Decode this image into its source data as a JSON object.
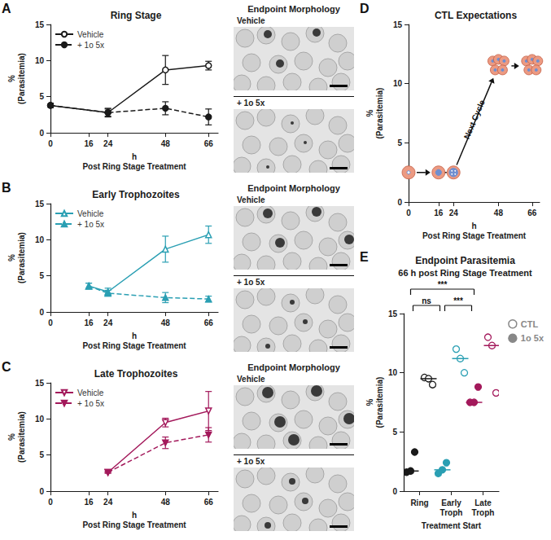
{
  "chart_data": [
    {
      "panel": "A",
      "type": "line",
      "title": "Ring Stage",
      "x_label": "h\nPost Ring Stage Treatment",
      "y_label": "%\n(Parasitemia)",
      "x": [
        0,
        24,
        48,
        66
      ],
      "xlim": [
        0,
        70
      ],
      "xticks": [
        0,
        16,
        24,
        48,
        66
      ],
      "ylim": [
        0,
        15
      ],
      "yticks": [
        0,
        5,
        10,
        15
      ],
      "legend": "upper left",
      "annotations": [
        "Endpoint Morphology",
        "Vehicle",
        "+ 1o 5x"
      ],
      "series": [
        {
          "name": "Vehicle",
          "color": "#1a1a1a",
          "marker": "circle_open",
          "line_style": "solid",
          "values": [
            3.8,
            2.8,
            8.7,
            9.3
          ],
          "errors": [
            0.3,
            0.6,
            2.0,
            0.6
          ]
        },
        {
          "name": "+ 1o 5x",
          "color": "#1a1a1a",
          "marker": "circle",
          "line_style": "dashed",
          "values": [
            3.8,
            2.8,
            3.4,
            2.2
          ],
          "errors": [
            0.3,
            0.5,
            0.9,
            1.1
          ]
        }
      ]
    },
    {
      "panel": "B",
      "type": "line",
      "title": "Early Trophozoites",
      "x_label": "h\nPost Ring Stage Treatment",
      "y_label": "%\n(Parasitemia)",
      "x": [
        16,
        24,
        48,
        66
      ],
      "xlim": [
        0,
        70
      ],
      "xticks": [
        0,
        16,
        24,
        48,
        66
      ],
      "ylim": [
        0,
        15
      ],
      "yticks": [
        0,
        5,
        10,
        15
      ],
      "legend": "upper left",
      "annotations": [
        "Endpoint Morphology",
        "Vehicle",
        "+ 1o 5x"
      ],
      "series": [
        {
          "name": "Vehicle",
          "color": "#2a9fb3",
          "marker": "triangle_open",
          "line_style": "solid",
          "values": [
            3.6,
            2.8,
            8.7,
            10.7
          ],
          "errors": [
            0.4,
            0.5,
            1.8,
            1.2
          ]
        },
        {
          "name": "+ 1o 5x",
          "color": "#2a9fb3",
          "marker": "triangle",
          "line_style": "dashed",
          "values": [
            3.6,
            2.6,
            2.0,
            1.8
          ],
          "errors": [
            0.4,
            0.4,
            0.7,
            0.4
          ]
        }
      ]
    },
    {
      "panel": "C",
      "type": "line",
      "title": "Late Trophozoites",
      "x_label": "h\nPost Ring Stage Treatment",
      "y_label": "%\n(Parasitemia)",
      "x": [
        24,
        48,
        66
      ],
      "xlim": [
        0,
        70
      ],
      "xticks": [
        0,
        16,
        24,
        48,
        66
      ],
      "ylim": [
        0,
        15
      ],
      "yticks": [
        0,
        5,
        10,
        15
      ],
      "legend": "upper left",
      "annotations": [
        "Endpoint Morphology",
        "Vehicle",
        "+ 1o 5x"
      ],
      "series": [
        {
          "name": "Vehicle",
          "color": "#a3195b",
          "marker": "triangle_down_open",
          "line_style": "solid",
          "values": [
            2.6,
            9.5,
            11.1
          ],
          "errors": [
            0.1,
            0.6,
            2.7
          ]
        },
        {
          "name": "+ 1o 5x",
          "color": "#a3195b",
          "marker": "triangle_down",
          "line_style": "dashed",
          "values": [
            2.6,
            6.7,
            7.8
          ],
          "errors": [
            0.1,
            0.8,
            1.0
          ]
        }
      ]
    },
    {
      "panel": "D",
      "type": "scatter",
      "title": "CTL Expectations",
      "x_label": "h\nPost Ring Stage Treatment",
      "y_label": "%\n(Parasitemia)",
      "marker": "cell",
      "color": "#ec9a82",
      "x": [
        0,
        16,
        24,
        48,
        66
      ],
      "values": [
        2.5,
        2.5,
        2.5,
        11.5,
        11.5
      ],
      "xlim": [
        0,
        70
      ],
      "xticks": [
        0,
        16,
        24,
        48,
        66
      ],
      "ylim": [
        0,
        15
      ],
      "yticks": [
        0,
        5,
        10,
        15
      ],
      "annotations": [
        "Next Cycle"
      ]
    },
    {
      "panel": "E",
      "type": "scatter",
      "title": "Endpoint Parasitemia",
      "subtitle": "66 h post Ring Stage Treatment",
      "x_label": "Treatment Start",
      "y_label": "%\n(Parasitemia)",
      "categories": [
        "Ring",
        "Early Troph",
        "Late Troph"
      ],
      "colors": [
        "#1a1a1a",
        "#2a9fb3",
        "#a3195b"
      ],
      "ylim": [
        0,
        15
      ],
      "yticks": [
        0,
        5,
        10,
        15
      ],
      "legend": "upper right",
      "series": [
        {
          "name": "CTL",
          "color": "#888888",
          "marker": "circle_open",
          "values": [
            [
              9.6,
              9.5,
              9.0
            ],
            [
              12.0,
              11.2,
              10.0
            ],
            [
              13.0,
              12.3,
              8.3
            ]
          ],
          "medians": [
            9.5,
            11.2,
            12.3
          ]
        },
        {
          "name": "1o 5x",
          "color": "#888888",
          "marker": "circle",
          "values": [
            [
              1.6,
              1.7,
              3.3
            ],
            [
              1.5,
              1.8,
              2.4
            ],
            [
              7.5,
              7.5,
              8.8
            ]
          ],
          "medians": [
            1.7,
            1.8,
            7.5
          ]
        }
      ],
      "comparisons": [
        {
          "from": "Ring",
          "to": "Early Troph",
          "label": "ns"
        },
        {
          "from": "Ring",
          "to": "Late Troph",
          "label": "***"
        },
        {
          "from": "Early Troph",
          "to": "Late Troph",
          "label": "***"
        }
      ]
    }
  ]
}
